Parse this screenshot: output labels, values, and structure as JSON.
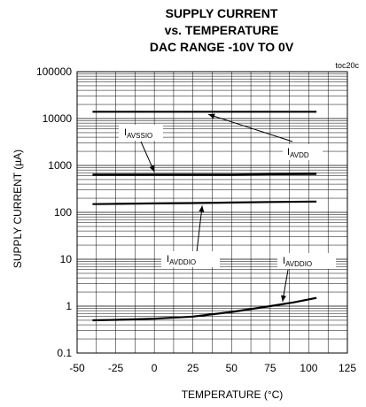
{
  "chart_data": {
    "type": "line",
    "title_lines": [
      "SUPPLY CURRENT",
      "vs. TEMPERATURE",
      "DAC RANGE -10V TO 0V"
    ],
    "code": "toc20c",
    "xlabel": "TEMPERATURE (°C)",
    "ylabel": "SUPPLY CURRENT (µA)",
    "xlim": [
      -50,
      125
    ],
    "ylim": [
      0.1,
      100000
    ],
    "yscale": "log",
    "grid": true,
    "x_ticks": [
      "-50",
      "-25",
      "0",
      "25",
      "50",
      "75",
      "100",
      "125"
    ],
    "y_ticks": [
      "0.1",
      "1",
      "10",
      "100",
      "1000",
      "10000",
      "100000"
    ],
    "series": [
      {
        "name": "AVDD",
        "x": [
          -40,
          -25,
          0,
          25,
          50,
          75,
          105
        ],
        "y": [
          14000,
          14000,
          14000,
          14000,
          14000,
          14000,
          14000
        ]
      },
      {
        "name": "AVSSIO",
        "x": [
          -40,
          -25,
          0,
          25,
          50,
          75,
          105
        ],
        "y": [
          640,
          640,
          640,
          640,
          640,
          650,
          660
        ]
      },
      {
        "name": "AVDDIO",
        "x": [
          -40,
          -25,
          0,
          25,
          50,
          75,
          105
        ],
        "y": [
          150,
          152,
          155,
          158,
          162,
          166,
          170
        ]
      },
      {
        "name": "AVDDIO",
        "x": [
          -40,
          -25,
          0,
          25,
          50,
          75,
          90,
          105
        ],
        "y": [
          0.5,
          0.51,
          0.54,
          0.6,
          0.75,
          1.0,
          1.2,
          1.5
        ]
      }
    ],
    "annotations": [
      {
        "main": "I",
        "sub": "AVSSIO"
      },
      {
        "main": "I",
        "sub": "AVDD"
      },
      {
        "main": "I",
        "sub": "AVDDIO"
      },
      {
        "main": "I",
        "sub": "AVDDIO"
      }
    ]
  }
}
